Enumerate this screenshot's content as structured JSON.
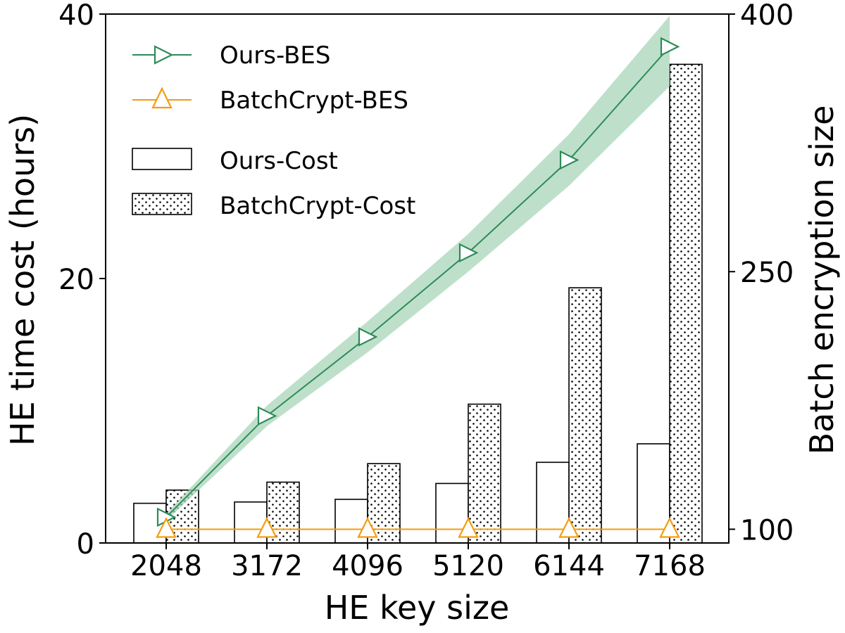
{
  "chart_data": {
    "type": "bar",
    "xlabel": "HE key size",
    "ylabel_left": "HE time cost (hours)",
    "ylabel_right": "Batch encryption size",
    "categories": [
      "2048",
      "3172",
      "4096",
      "5120",
      "6144",
      "7168"
    ],
    "ylim_left": [
      0,
      40
    ],
    "yticks_left": [
      "0",
      "20",
      "40"
    ],
    "ylim_right": [
      92,
      400
    ],
    "yticks_right": [
      "100",
      "250",
      "400"
    ],
    "bar_series": [
      {
        "name": "Ours-Cost",
        "values": [
          3.0,
          3.1,
          3.3,
          4.5,
          6.1,
          7.5
        ],
        "fill": "none",
        "axis": "left"
      },
      {
        "name": "BatchCrypt-Cost",
        "values": [
          4.0,
          4.6,
          6.0,
          10.5,
          19.3,
          36.2
        ],
        "fill": "dots",
        "axis": "left"
      }
    ],
    "line_series": [
      {
        "name": "Ours-BES",
        "values": [
          107,
          166,
          212,
          261,
          315,
          381
        ],
        "band_low": [
          105,
          160,
          203,
          250,
          300,
          358
        ],
        "band_high": [
          109,
          172,
          221,
          272,
          330,
          399
        ],
        "color": "#2e8b57",
        "band_color": "#a8d5b9",
        "marker": "triangle-right",
        "axis": "right"
      },
      {
        "name": "BatchCrypt-BES",
        "values": [
          100,
          100,
          100,
          100,
          100,
          100
        ],
        "color": "#f39c12",
        "marker": "triangle-up",
        "axis": "right"
      }
    ],
    "legend_position": "top-left",
    "grid": false
  }
}
